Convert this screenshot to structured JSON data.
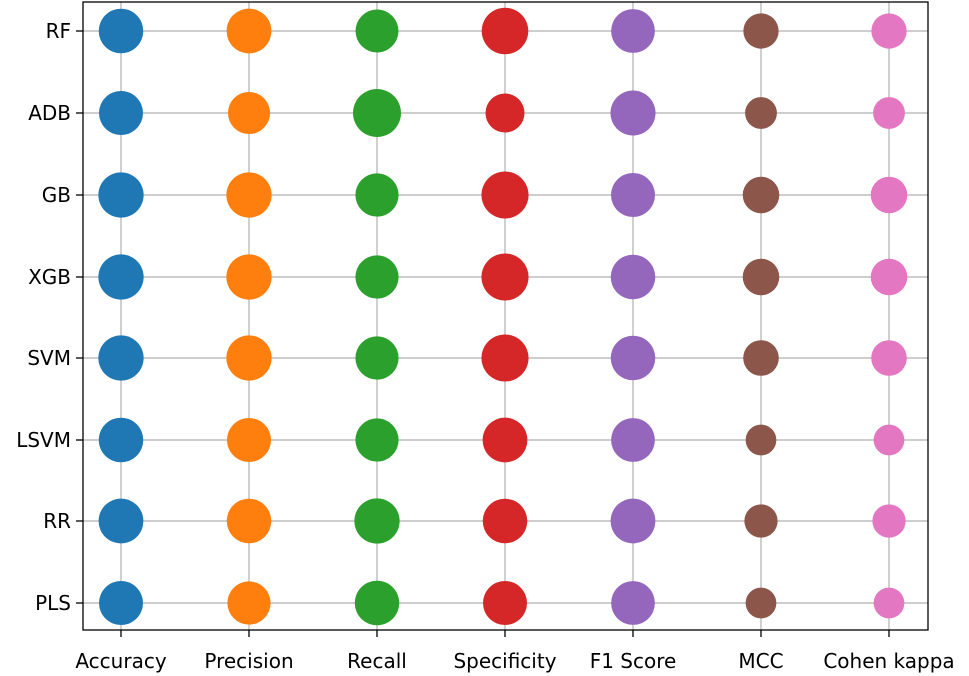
{
  "chart_data": {
    "type": "scatter",
    "subtype": "bubble-matrix",
    "title": "",
    "xlabel": "",
    "ylabel": "",
    "grid": true,
    "categories_x": [
      "Accuracy",
      "Precision",
      "Recall",
      "Specificity",
      "F1 Score",
      "MCC",
      "Cohen kappa"
    ],
    "categories_y": [
      "RF",
      "ADB",
      "GB",
      "XGB",
      "SVM",
      "LSVM",
      "RR",
      "PLS"
    ],
    "colors": [
      "#1f77b4",
      "#ff7f0e",
      "#2ca02c",
      "#d62728",
      "#9467bd",
      "#8c564b",
      "#e377c2"
    ],
    "bubble_values": {
      "RF": [
        0.86,
        0.87,
        0.8,
        0.94,
        0.83,
        0.54,
        0.54
      ],
      "ADB": [
        0.84,
        0.77,
        1.0,
        0.66,
        0.88,
        0.44,
        0.44
      ],
      "GB": [
        0.89,
        0.89,
        0.81,
        0.96,
        0.84,
        0.58,
        0.58
      ],
      "XGB": [
        0.89,
        0.89,
        0.81,
        0.96,
        0.86,
        0.58,
        0.58
      ],
      "SVM": [
        0.89,
        0.89,
        0.81,
        0.96,
        0.86,
        0.55,
        0.55
      ],
      "LSVM": [
        0.86,
        0.84,
        0.81,
        0.87,
        0.83,
        0.41,
        0.41
      ],
      "RR": [
        0.87,
        0.86,
        0.89,
        0.86,
        0.87,
        0.48,
        0.48
      ],
      "PLS": [
        0.84,
        0.81,
        0.86,
        0.84,
        0.83,
        0.41,
        0.41
      ]
    }
  }
}
